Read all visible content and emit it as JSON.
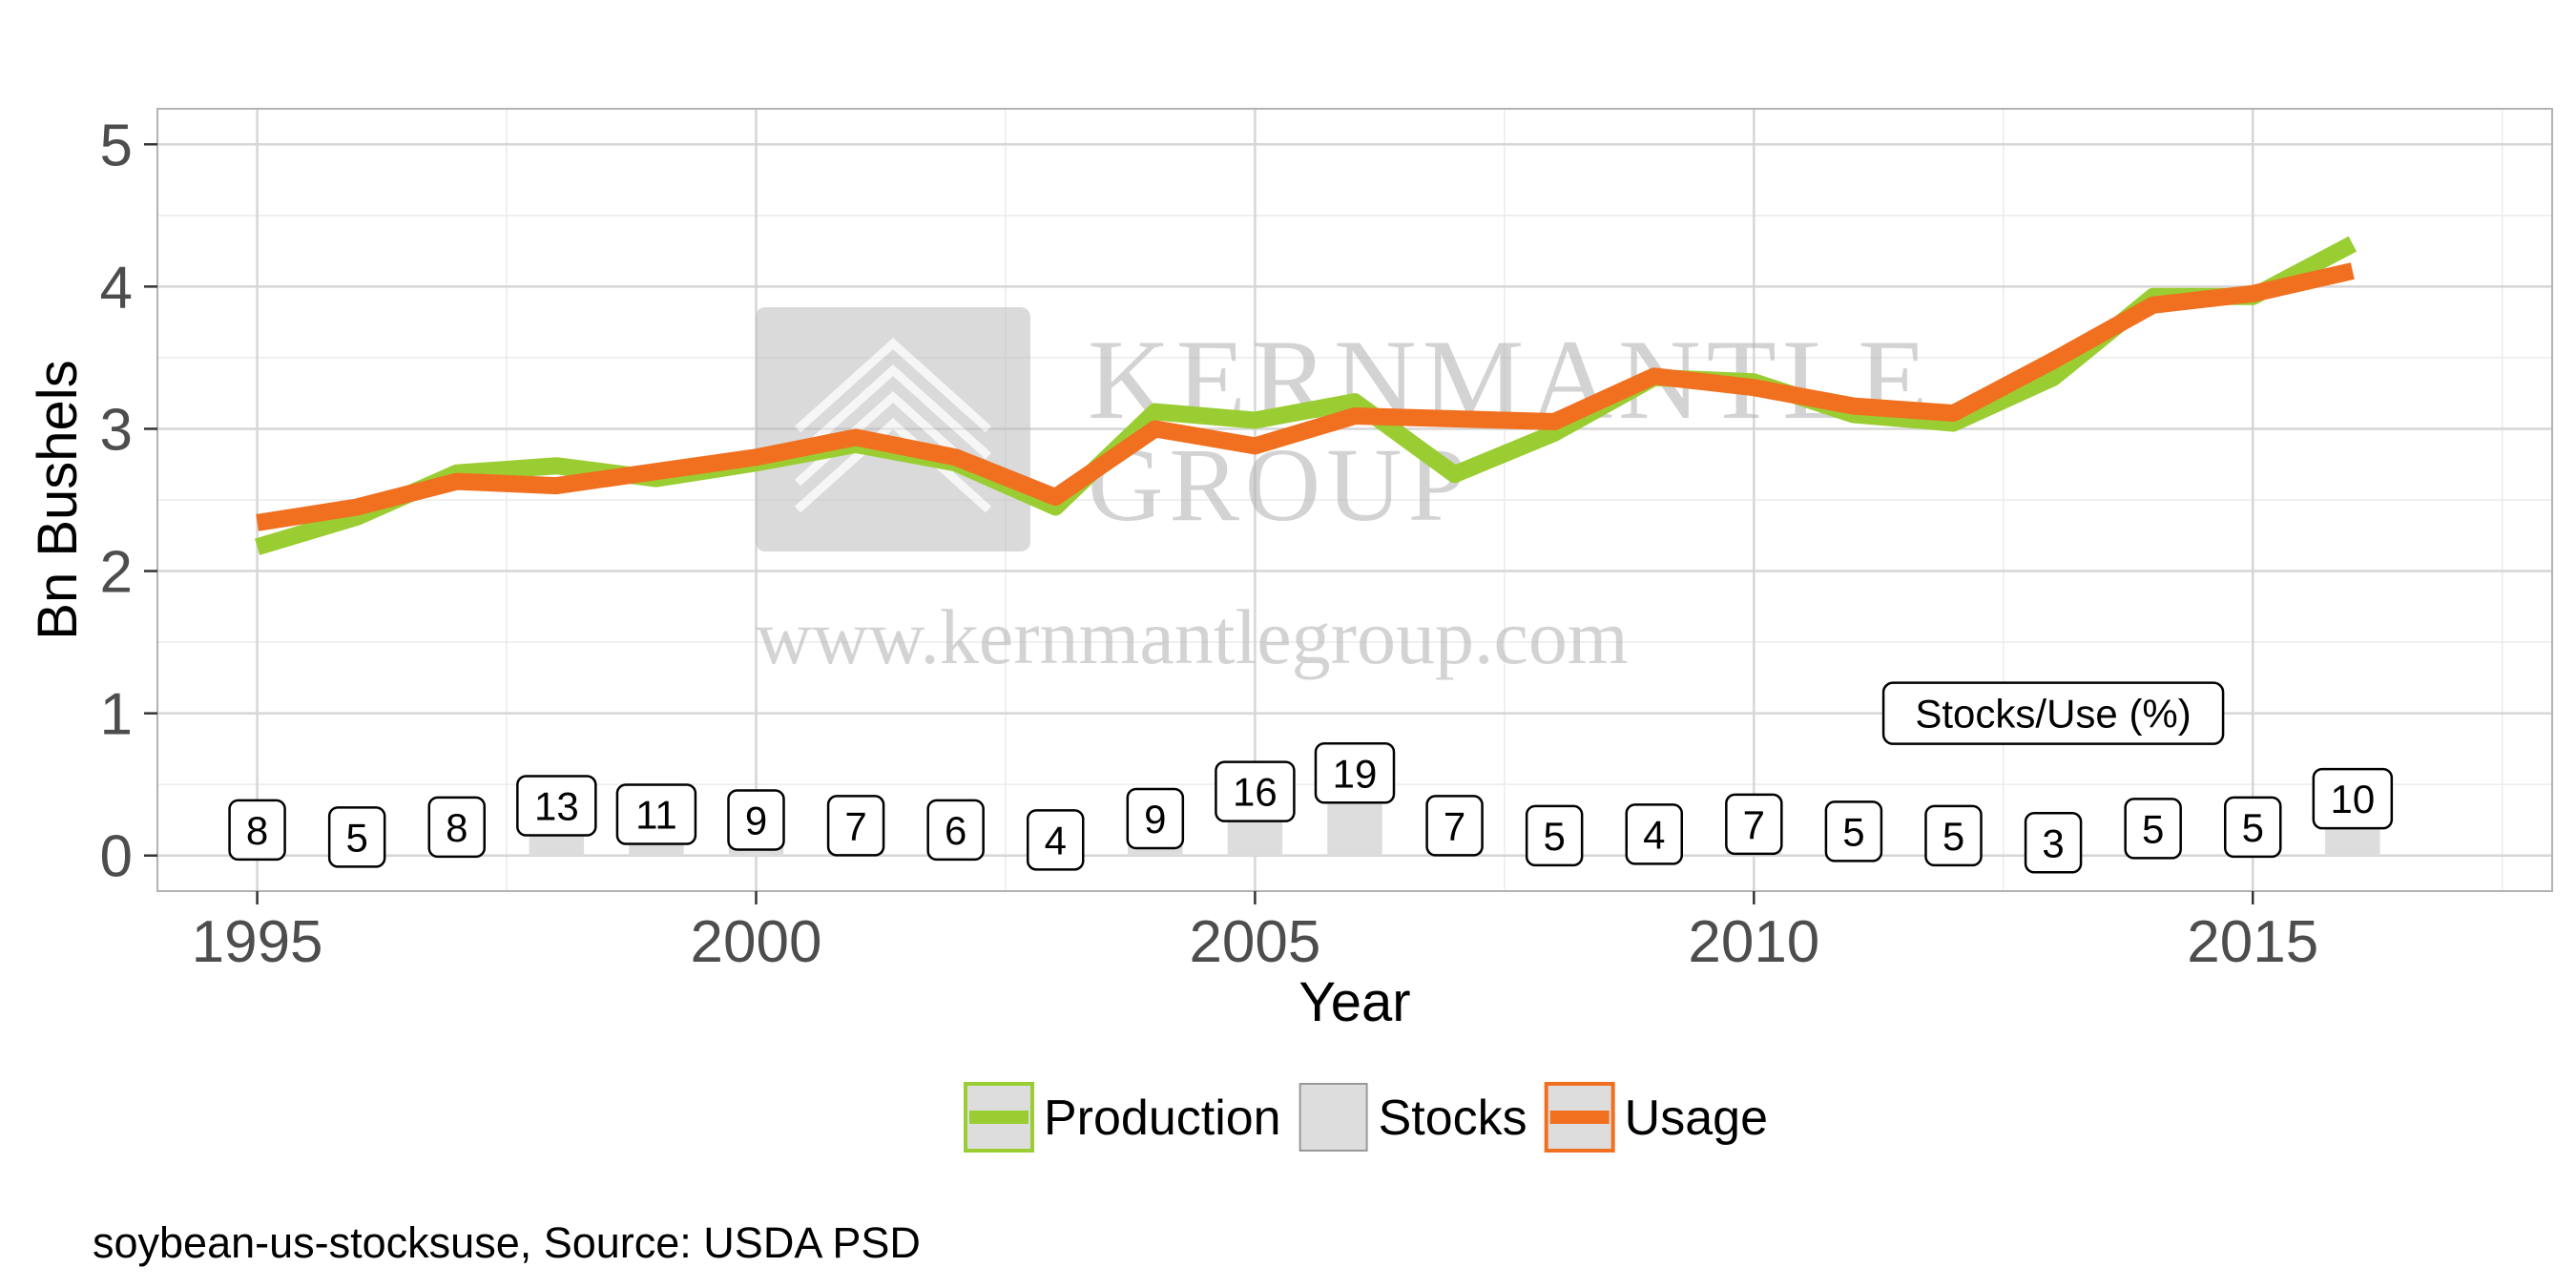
{
  "chart_data": {
    "type": "line",
    "xlabel": "Year",
    "ylabel": "Bn Bushels",
    "xlim": [
      1994,
      2018
    ],
    "ylim": [
      -0.25,
      5.25
    ],
    "x_ticks": [
      1995,
      2000,
      2005,
      2010,
      2015
    ],
    "y_ticks": [
      0,
      1,
      2,
      3,
      4,
      5
    ],
    "grid": true,
    "legend_position": "bottom",
    "years": [
      1995,
      1996,
      1997,
      1998,
      1999,
      2000,
      2001,
      2002,
      2003,
      2004,
      2005,
      2006,
      2007,
      2008,
      2009,
      2010,
      2011,
      2012,
      2013,
      2014,
      2015,
      2016
    ],
    "series": [
      {
        "name": "Production",
        "kind": "line",
        "color": "#9ACD32",
        "values": [
          2.17,
          2.38,
          2.69,
          2.74,
          2.65,
          2.76,
          2.89,
          2.76,
          2.45,
          3.12,
          3.06,
          3.19,
          2.68,
          2.97,
          3.36,
          3.33,
          3.1,
          3.04,
          3.36,
          3.93,
          3.93,
          4.3
        ]
      },
      {
        "name": "Stocks",
        "kind": "bar",
        "color": "#DDDDDD",
        "values": [
          0.18,
          0.13,
          0.2,
          0.35,
          0.29,
          0.25,
          0.21,
          0.18,
          0.11,
          0.26,
          0.45,
          0.58,
          0.21,
          0.14,
          0.15,
          0.22,
          0.17,
          0.14,
          0.09,
          0.19,
          0.2,
          0.4
        ]
      },
      {
        "name": "Usage",
        "kind": "line",
        "color": "#F07020",
        "values": [
          2.34,
          2.45,
          2.63,
          2.6,
          2.7,
          2.8,
          2.94,
          2.8,
          2.52,
          3.0,
          2.88,
          3.09,
          3.07,
          3.05,
          3.37,
          3.29,
          3.16,
          3.11,
          3.48,
          3.87,
          3.95,
          4.11
        ]
      }
    ],
    "stocks_use_pct": [
      8,
      5,
      8,
      13,
      11,
      9,
      7,
      6,
      4,
      9,
      16,
      19,
      7,
      5,
      4,
      7,
      5,
      5,
      3,
      5,
      5,
      10
    ],
    "annotation": "Stocks/Use (%)"
  },
  "watermark": {
    "line1": "KERNMANTLE",
    "line2": "GROUP",
    "url": "www.kernmantlegroup.com"
  },
  "caption": "soybean-us-stocksuse, Source: USDA PSD"
}
